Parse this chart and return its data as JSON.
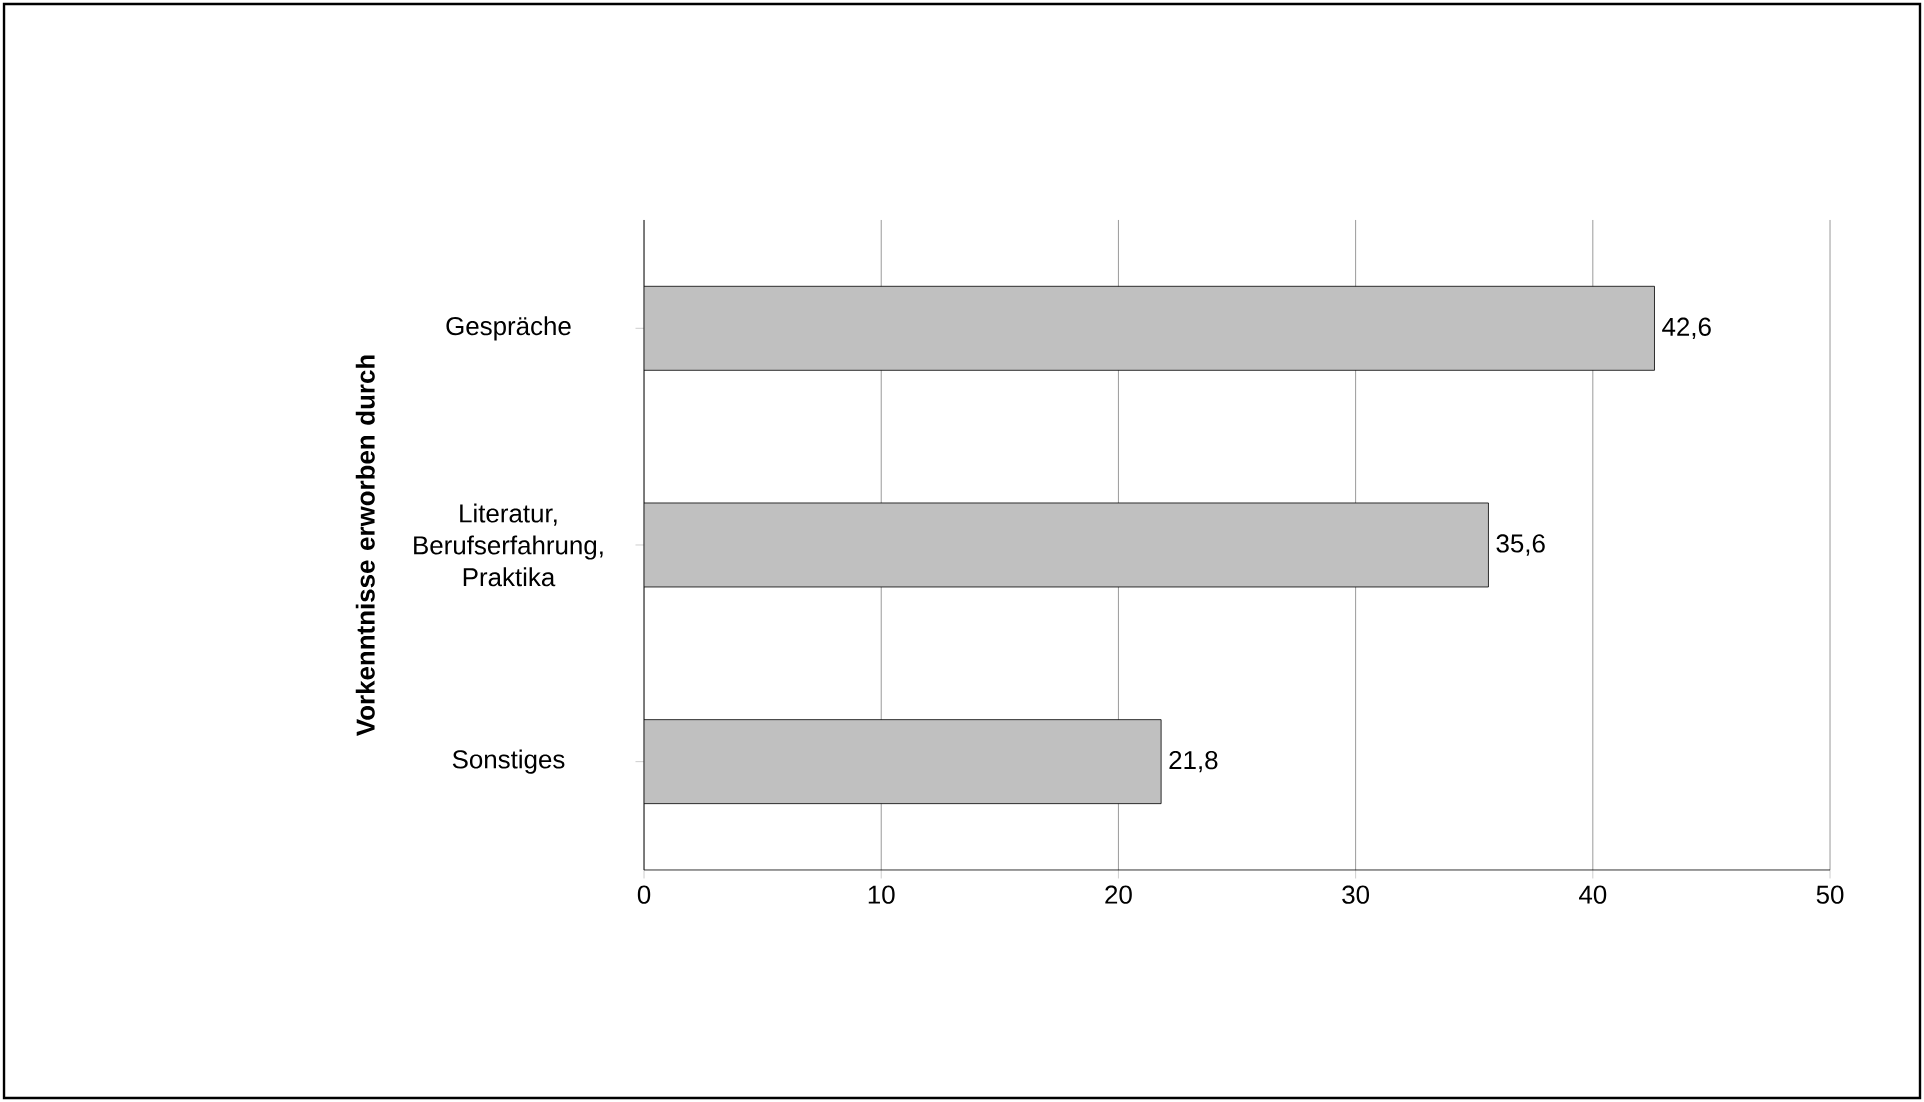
{
  "chart_data": {
    "type": "bar",
    "orientation": "horizontal",
    "ylabel": "Vorkenntnisse erworben durch",
    "categories": [
      "Gespräche",
      "Literatur, Berufserfahrung, Praktika",
      "Sonstiges"
    ],
    "values": [
      42.6,
      35.6,
      21.8
    ],
    "value_labels": [
      "42,6",
      "35,6",
      "21,8"
    ],
    "color": "#c0c0c0",
    "xlim": [
      0,
      50
    ],
    "xticks": [
      0,
      10,
      20,
      30,
      40,
      50
    ],
    "grid": "x"
  }
}
